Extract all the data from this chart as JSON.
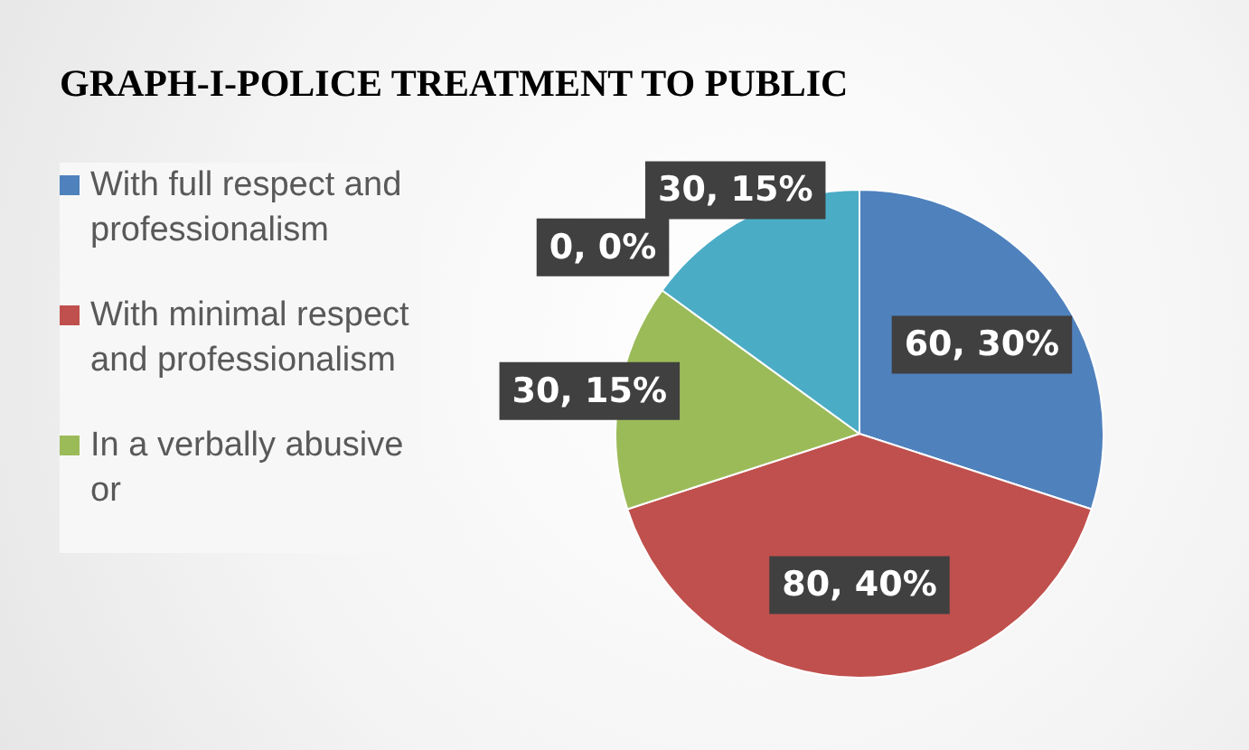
{
  "chart_data": {
    "type": "pie",
    "title": "GRAPH-I-POLICE TREATMENT TO PUBLIC",
    "categories": [
      "With full respect and professionalism",
      "With minimal respect and professionalism",
      "In a verbally abusive or",
      null,
      null
    ],
    "values": [
      60,
      80,
      30,
      0,
      30
    ],
    "colors": [
      "#4f81bd",
      "#c0504d",
      "#9bbb59",
      "#8064a2",
      "#4bacc6"
    ],
    "value_labels": [
      "60, 30%",
      "80, 40%",
      "30, 15%",
      "0, 0%",
      "30, 15%"
    ],
    "legend": "left"
  }
}
